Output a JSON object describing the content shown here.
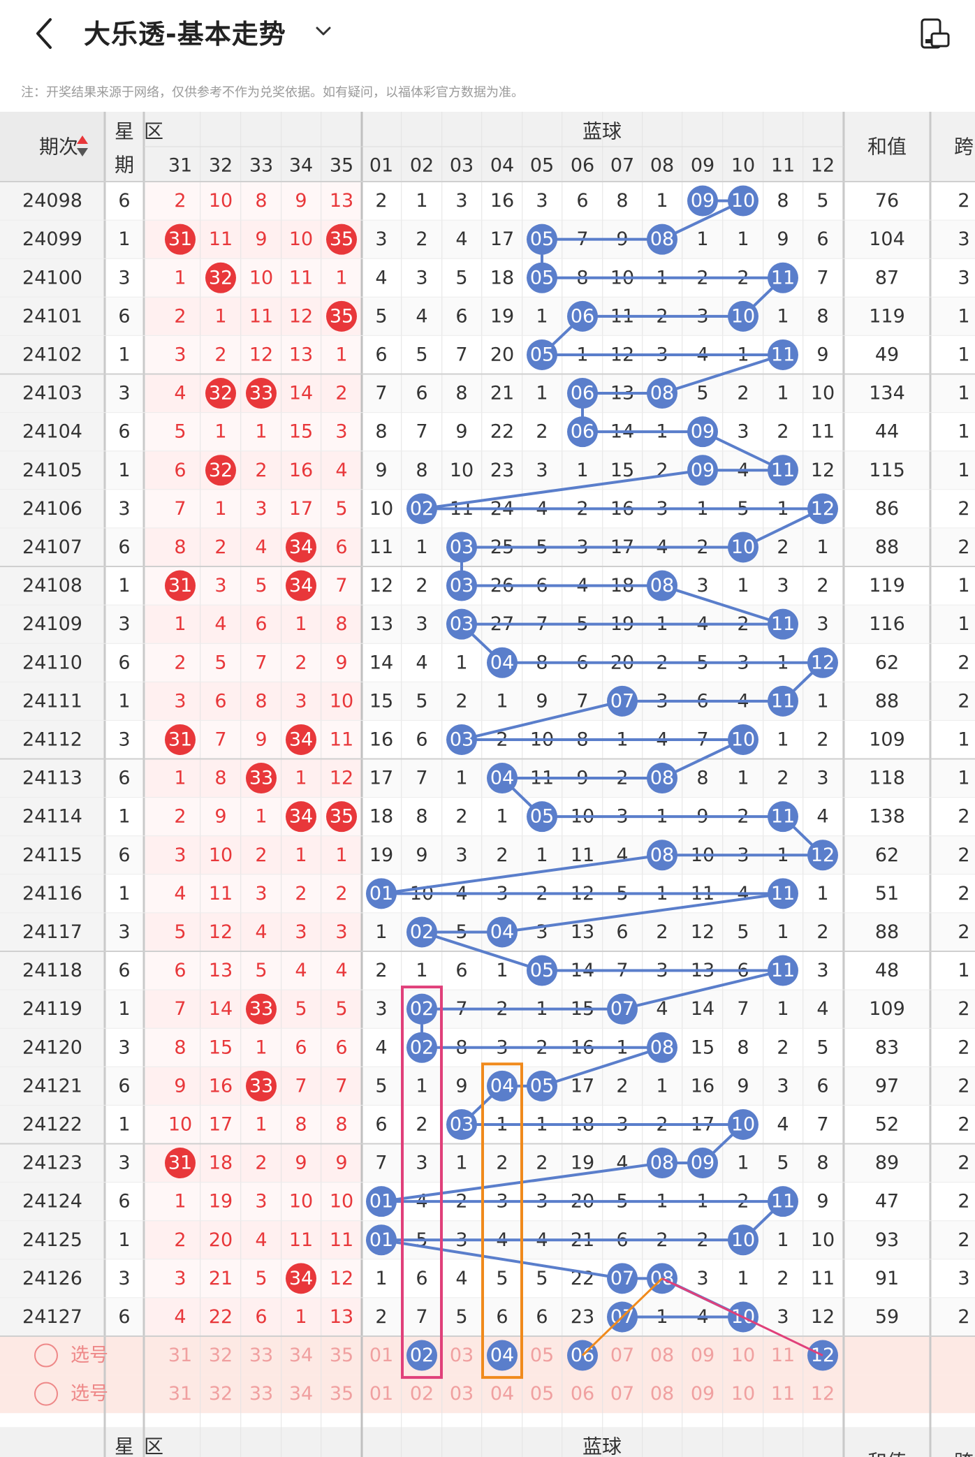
{
  "header": {
    "title": "大乐透-基本走势"
  },
  "note": "注：开奖结果来源于网络，仅供参考不作为兑奖依据。如有疑问，以福体彩官方数据为准。",
  "columns": {
    "period": "期次",
    "week_top": "星",
    "week_bottom": "期",
    "front_zone": "区",
    "back_zone": "蓝球",
    "sum": "和值",
    "span": "跨",
    "front_numbers": [
      "31",
      "32",
      "33",
      "34",
      "35"
    ],
    "back_numbers": [
      "01",
      "02",
      "03",
      "04",
      "05",
      "06",
      "07",
      "08",
      "09",
      "10",
      "11",
      "12"
    ]
  },
  "rows": [
    {
      "p": "24098",
      "w": "6",
      "f": [
        "2",
        "10",
        "8",
        "9",
        "13"
      ],
      "fh": [],
      "b": [
        "2",
        "1",
        "3",
        "16",
        "3",
        "6",
        "8",
        "1",
        "09",
        "10",
        "8",
        "5"
      ],
      "bh": [
        8,
        9
      ],
      "sum": "76",
      "span": "2"
    },
    {
      "p": "24099",
      "w": "1",
      "f": [
        "31",
        "11",
        "9",
        "10",
        "35"
      ],
      "fh": [
        0,
        4
      ],
      "b": [
        "3",
        "2",
        "4",
        "17",
        "05",
        "7",
        "9",
        "08",
        "1",
        "1",
        "9",
        "6"
      ],
      "bh": [
        4,
        7
      ],
      "sum": "104",
      "span": "3"
    },
    {
      "p": "24100",
      "w": "3",
      "f": [
        "1",
        "32",
        "10",
        "11",
        "1"
      ],
      "fh": [
        1
      ],
      "b": [
        "4",
        "3",
        "5",
        "18",
        "05",
        "8",
        "10",
        "1",
        "2",
        "2",
        "11",
        "7"
      ],
      "bh": [
        4,
        10
      ],
      "sum": "87",
      "span": "3"
    },
    {
      "p": "24101",
      "w": "6",
      "f": [
        "2",
        "1",
        "11",
        "12",
        "35"
      ],
      "fh": [
        4
      ],
      "b": [
        "5",
        "4",
        "6",
        "19",
        "1",
        "06",
        "11",
        "2",
        "3",
        "10",
        "1",
        "8"
      ],
      "bh": [
        5,
        9
      ],
      "sum": "119",
      "span": "1"
    },
    {
      "p": "24102",
      "w": "1",
      "f": [
        "3",
        "2",
        "12",
        "13",
        "1"
      ],
      "fh": [],
      "b": [
        "6",
        "5",
        "7",
        "20",
        "05",
        "1",
        "12",
        "3",
        "4",
        "1",
        "11",
        "9"
      ],
      "bh": [
        4,
        10
      ],
      "sum": "49",
      "span": "1"
    },
    {
      "p": "24103",
      "w": "3",
      "f": [
        "4",
        "32",
        "33",
        "14",
        "2"
      ],
      "fh": [
        1,
        2
      ],
      "b": [
        "7",
        "6",
        "8",
        "21",
        "1",
        "06",
        "13",
        "08",
        "5",
        "2",
        "1",
        "10"
      ],
      "bh": [
        5,
        7
      ],
      "sum": "134",
      "span": "1"
    },
    {
      "p": "24104",
      "w": "6",
      "f": [
        "5",
        "1",
        "1",
        "15",
        "3"
      ],
      "fh": [],
      "b": [
        "8",
        "7",
        "9",
        "22",
        "2",
        "06",
        "14",
        "1",
        "09",
        "3",
        "2",
        "11"
      ],
      "bh": [
        5,
        8
      ],
      "sum": "44",
      "span": "1"
    },
    {
      "p": "24105",
      "w": "1",
      "f": [
        "6",
        "32",
        "2",
        "16",
        "4"
      ],
      "fh": [
        1
      ],
      "b": [
        "9",
        "8",
        "10",
        "23",
        "3",
        "1",
        "15",
        "2",
        "09",
        "4",
        "11",
        "12"
      ],
      "bh": [
        8,
        10
      ],
      "sum": "115",
      "span": "1"
    },
    {
      "p": "24106",
      "w": "3",
      "f": [
        "7",
        "1",
        "3",
        "17",
        "5"
      ],
      "fh": [],
      "b": [
        "10",
        "02",
        "11",
        "24",
        "4",
        "2",
        "16",
        "3",
        "1",
        "5",
        "1",
        "12"
      ],
      "bh": [
        1,
        11
      ],
      "sum": "86",
      "span": "2"
    },
    {
      "p": "24107",
      "w": "6",
      "f": [
        "8",
        "2",
        "4",
        "34",
        "6"
      ],
      "fh": [
        3
      ],
      "b": [
        "11",
        "1",
        "03",
        "25",
        "5",
        "3",
        "17",
        "4",
        "2",
        "10",
        "2",
        "1"
      ],
      "bh": [
        2,
        9
      ],
      "sum": "88",
      "span": "2"
    },
    {
      "p": "24108",
      "w": "1",
      "f": [
        "31",
        "3",
        "5",
        "34",
        "7"
      ],
      "fh": [
        0,
        3
      ],
      "b": [
        "12",
        "2",
        "03",
        "26",
        "6",
        "4",
        "18",
        "08",
        "3",
        "1",
        "3",
        "2"
      ],
      "bh": [
        2,
        7
      ],
      "sum": "119",
      "span": "1"
    },
    {
      "p": "24109",
      "w": "3",
      "f": [
        "1",
        "4",
        "6",
        "1",
        "8"
      ],
      "fh": [],
      "b": [
        "13",
        "3",
        "03",
        "27",
        "7",
        "5",
        "19",
        "1",
        "4",
        "2",
        "11",
        "3"
      ],
      "bh": [
        2,
        10
      ],
      "sum": "116",
      "span": "1"
    },
    {
      "p": "24110",
      "w": "6",
      "f": [
        "2",
        "5",
        "7",
        "2",
        "9"
      ],
      "fh": [],
      "b": [
        "14",
        "4",
        "1",
        "04",
        "8",
        "6",
        "20",
        "2",
        "5",
        "3",
        "1",
        "12"
      ],
      "bh": [
        3,
        11
      ],
      "sum": "62",
      "span": "2"
    },
    {
      "p": "24111",
      "w": "1",
      "f": [
        "3",
        "6",
        "8",
        "3",
        "10"
      ],
      "fh": [],
      "b": [
        "15",
        "5",
        "2",
        "1",
        "9",
        "7",
        "07",
        "3",
        "6",
        "4",
        "11",
        "1"
      ],
      "bh": [
        6,
        10
      ],
      "sum": "88",
      "span": "2"
    },
    {
      "p": "24112",
      "w": "3",
      "f": [
        "31",
        "7",
        "9",
        "34",
        "11"
      ],
      "fh": [
        0,
        3
      ],
      "b": [
        "16",
        "6",
        "03",
        "2",
        "10",
        "8",
        "1",
        "4",
        "7",
        "10",
        "1",
        "2"
      ],
      "bh": [
        2,
        9
      ],
      "sum": "109",
      "span": "1"
    },
    {
      "p": "24113",
      "w": "6",
      "f": [
        "1",
        "8",
        "33",
        "1",
        "12"
      ],
      "fh": [
        2
      ],
      "b": [
        "17",
        "7",
        "1",
        "04",
        "11",
        "9",
        "2",
        "08",
        "8",
        "1",
        "2",
        "3"
      ],
      "bh": [
        3,
        7
      ],
      "sum": "118",
      "span": "1"
    },
    {
      "p": "24114",
      "w": "1",
      "f": [
        "2",
        "9",
        "1",
        "34",
        "35"
      ],
      "fh": [
        3,
        4
      ],
      "b": [
        "18",
        "8",
        "2",
        "1",
        "05",
        "10",
        "3",
        "1",
        "9",
        "2",
        "11",
        "4"
      ],
      "bh": [
        4,
        10
      ],
      "sum": "138",
      "span": "2"
    },
    {
      "p": "24115",
      "w": "6",
      "f": [
        "3",
        "10",
        "2",
        "1",
        "1"
      ],
      "fh": [],
      "b": [
        "19",
        "9",
        "3",
        "2",
        "1",
        "11",
        "4",
        "08",
        "10",
        "3",
        "1",
        "12"
      ],
      "bh": [
        7,
        11
      ],
      "sum": "62",
      "span": "2"
    },
    {
      "p": "24116",
      "w": "1",
      "f": [
        "4",
        "11",
        "3",
        "2",
        "2"
      ],
      "fh": [],
      "b": [
        "01",
        "10",
        "4",
        "3",
        "2",
        "12",
        "5",
        "1",
        "11",
        "4",
        "11",
        "1"
      ],
      "bh": [
        0,
        10
      ],
      "sum": "51",
      "span": "2"
    },
    {
      "p": "24117",
      "w": "3",
      "f": [
        "5",
        "12",
        "4",
        "3",
        "3"
      ],
      "fh": [],
      "b": [
        "1",
        "02",
        "5",
        "04",
        "3",
        "13",
        "6",
        "2",
        "12",
        "5",
        "1",
        "2"
      ],
      "bh": [
        1,
        3
      ],
      "sum": "88",
      "span": "2"
    },
    {
      "p": "24118",
      "w": "6",
      "f": [
        "6",
        "13",
        "5",
        "4",
        "4"
      ],
      "fh": [],
      "b": [
        "2",
        "1",
        "6",
        "1",
        "05",
        "14",
        "7",
        "3",
        "13",
        "6",
        "11",
        "3"
      ],
      "bh": [
        4,
        10
      ],
      "sum": "48",
      "span": "1"
    },
    {
      "p": "24119",
      "w": "1",
      "f": [
        "7",
        "14",
        "33",
        "5",
        "5"
      ],
      "fh": [
        2
      ],
      "b": [
        "3",
        "02",
        "7",
        "2",
        "1",
        "15",
        "07",
        "4",
        "14",
        "7",
        "1",
        "4"
      ],
      "bh": [
        1,
        6
      ],
      "sum": "109",
      "span": "2"
    },
    {
      "p": "24120",
      "w": "3",
      "f": [
        "8",
        "15",
        "1",
        "6",
        "6"
      ],
      "fh": [],
      "b": [
        "4",
        "02",
        "8",
        "3",
        "2",
        "16",
        "1",
        "08",
        "15",
        "8",
        "2",
        "5"
      ],
      "bh": [
        1,
        7
      ],
      "sum": "83",
      "span": "2"
    },
    {
      "p": "24121",
      "w": "6",
      "f": [
        "9",
        "16",
        "33",
        "7",
        "7"
      ],
      "fh": [
        2
      ],
      "b": [
        "5",
        "1",
        "9",
        "04",
        "05",
        "17",
        "2",
        "1",
        "16",
        "9",
        "3",
        "6"
      ],
      "bh": [
        3,
        4
      ],
      "sum": "97",
      "span": "2"
    },
    {
      "p": "24122",
      "w": "1",
      "f": [
        "10",
        "17",
        "1",
        "8",
        "8"
      ],
      "fh": [],
      "b": [
        "6",
        "2",
        "03",
        "1",
        "1",
        "18",
        "3",
        "2",
        "17",
        "10",
        "4",
        "7"
      ],
      "bh": [
        2,
        9
      ],
      "sum": "52",
      "span": "2"
    },
    {
      "p": "24123",
      "w": "3",
      "f": [
        "31",
        "18",
        "2",
        "9",
        "9"
      ],
      "fh": [
        0
      ],
      "b": [
        "7",
        "3",
        "1",
        "2",
        "2",
        "19",
        "4",
        "08",
        "09",
        "1",
        "5",
        "8"
      ],
      "bh": [
        7,
        8
      ],
      "sum": "89",
      "span": "2"
    },
    {
      "p": "24124",
      "w": "6",
      "f": [
        "1",
        "19",
        "3",
        "10",
        "10"
      ],
      "fh": [],
      "b": [
        "01",
        "4",
        "2",
        "3",
        "3",
        "20",
        "5",
        "1",
        "1",
        "2",
        "11",
        "9"
      ],
      "bh": [
        0,
        10
      ],
      "sum": "47",
      "span": "2"
    },
    {
      "p": "24125",
      "w": "1",
      "f": [
        "2",
        "20",
        "4",
        "11",
        "11"
      ],
      "fh": [],
      "b": [
        "01",
        "5",
        "3",
        "4",
        "4",
        "21",
        "6",
        "2",
        "2",
        "10",
        "1",
        "10"
      ],
      "bh": [
        0,
        9
      ],
      "sum": "93",
      "span": "2"
    },
    {
      "p": "24126",
      "w": "3",
      "f": [
        "3",
        "21",
        "5",
        "34",
        "12"
      ],
      "fh": [
        3
      ],
      "b": [
        "1",
        "6",
        "4",
        "5",
        "5",
        "22",
        "07",
        "08",
        "3",
        "1",
        "2",
        "11"
      ],
      "bh": [
        6,
        7
      ],
      "sum": "91",
      "span": "3"
    },
    {
      "p": "24127",
      "w": "6",
      "f": [
        "4",
        "22",
        "6",
        "1",
        "13"
      ],
      "fh": [],
      "b": [
        "2",
        "7",
        "5",
        "6",
        "6",
        "23",
        "07",
        "1",
        "4",
        "10",
        "3",
        "12"
      ],
      "bh": [
        6,
        9
      ],
      "sum": "59",
      "span": "2"
    }
  ],
  "pick_rows": [
    {
      "label": "选号",
      "back_selected": [
        1,
        3,
        5,
        11
      ]
    },
    {
      "label": "选号",
      "back_selected": []
    }
  ],
  "footer": {
    "dash": "-"
  },
  "colors": {
    "red": "#e8373a",
    "blue": "#5a7ecb",
    "line": "#5a7ecb",
    "pink": "#e0407a",
    "orange": "#f08a1c",
    "pickbg": "#fde9e4"
  }
}
